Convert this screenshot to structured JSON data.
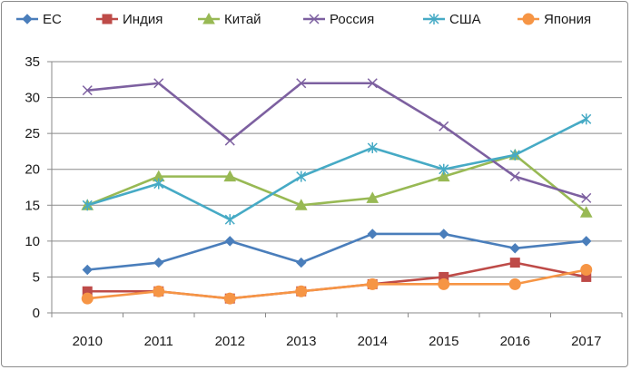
{
  "chart_data": {
    "type": "line",
    "title": "",
    "xlabel": "",
    "ylabel": "",
    "x": [
      "2010",
      "2011",
      "2012",
      "2013",
      "2014",
      "2015",
      "2016",
      "2017"
    ],
    "ylim": [
      0,
      35
    ],
    "yticks": [
      0,
      5,
      10,
      15,
      20,
      25,
      30,
      35
    ],
    "grid": "horizontal",
    "legend_position": "top",
    "series": [
      {
        "name": "ЕС",
        "values": [
          6,
          7,
          10,
          7,
          11,
          11,
          9,
          10
        ],
        "color": "#4a7ebb",
        "marker": "diamond"
      },
      {
        "name": "Индия",
        "values": [
          3,
          3,
          2,
          3,
          4,
          5,
          7,
          5
        ],
        "color": "#be4b48",
        "marker": "square"
      },
      {
        "name": "Китай",
        "values": [
          15,
          19,
          19,
          15,
          16,
          19,
          22,
          14
        ],
        "color": "#98b954",
        "marker": "triangle"
      },
      {
        "name": "Россия",
        "values": [
          31,
          32,
          24,
          32,
          32,
          26,
          19,
          16
        ],
        "color": "#7d60a0",
        "marker": "x"
      },
      {
        "name": "США",
        "values": [
          15,
          18,
          13,
          19,
          23,
          20,
          22,
          27
        ],
        "color": "#46aac5",
        "marker": "star"
      },
      {
        "name": "Япония",
        "values": [
          2,
          3,
          2,
          3,
          4,
          4,
          4,
          6
        ],
        "color": "#f69545",
        "marker": "circle"
      }
    ]
  }
}
